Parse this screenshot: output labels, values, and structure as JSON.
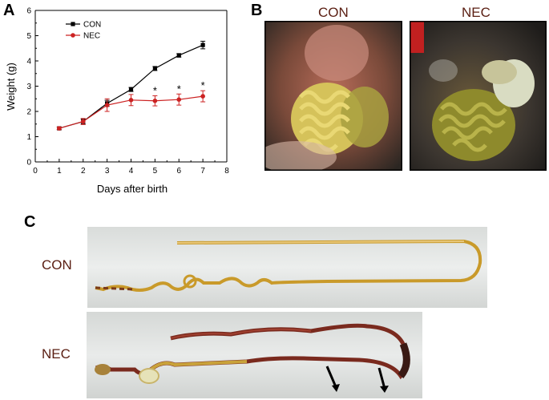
{
  "panels": {
    "a": "A",
    "b": "B",
    "c": "C"
  },
  "chart_data": {
    "type": "line",
    "title": "",
    "xlabel": "Days after birth",
    "ylabel": "Weight (g)",
    "xlim": [
      0,
      8
    ],
    "ylim": [
      0,
      6
    ],
    "xticks": [
      "0",
      "1",
      "2",
      "3",
      "4",
      "5",
      "6",
      "7",
      "8"
    ],
    "yticks": [
      "0",
      "1",
      "2",
      "3",
      "4",
      "5",
      "6"
    ],
    "grid": false,
    "legend_position": "top-left",
    "x": [
      1,
      2,
      3,
      4,
      5,
      6,
      7
    ],
    "series": [
      {
        "name": "CON",
        "color": "#000000",
        "marker": "square",
        "values": [
          1.33,
          1.6,
          2.32,
          2.87,
          3.7,
          4.22,
          4.63
        ],
        "errors": [
          0.05,
          0.1,
          0.12,
          0.08,
          0.08,
          0.07,
          0.15
        ]
      },
      {
        "name": "NEC",
        "color": "#cc2222",
        "marker": "circle",
        "values": [
          1.33,
          1.6,
          2.25,
          2.45,
          2.42,
          2.47,
          2.6
        ],
        "errors": [
          0.05,
          0.12,
          0.25,
          0.22,
          0.2,
          0.22,
          0.22
        ]
      }
    ],
    "annotations": [
      {
        "x": 5,
        "text": "*"
      },
      {
        "x": 6,
        "text": "*"
      },
      {
        "x": 7,
        "text": "*"
      }
    ]
  },
  "photos_b": {
    "left_label": "CON",
    "right_label": "NEC"
  },
  "photos_c": {
    "top_label": "CON",
    "bottom_label": "NEC"
  }
}
